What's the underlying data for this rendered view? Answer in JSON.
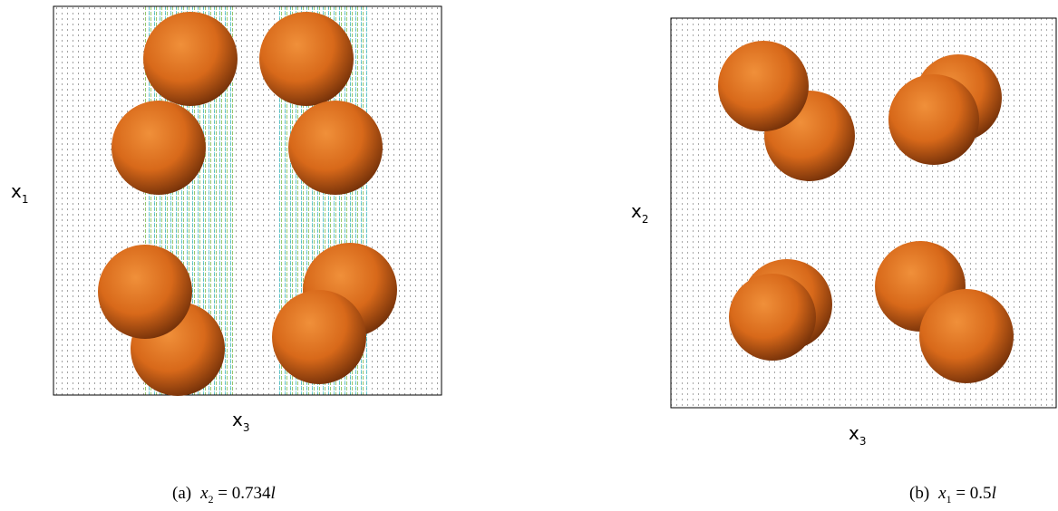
{
  "panels": [
    {
      "y_label": {
        "base": "x",
        "sub": "1"
      },
      "x_label": {
        "base": "x",
        "sub": "3"
      },
      "caption": {
        "tag": "(a)",
        "var": "x",
        "sub": "2",
        "rest": " = 0.734",
        "unit": "l"
      }
    },
    {
      "y_label": {
        "base": "x",
        "sub": "2"
      },
      "x_label": {
        "base": "x",
        "sub": "3"
      },
      "caption": {
        "tag": "(b)",
        "var": "x",
        "sub": "1",
        "rest": " = 0.5",
        "unit": "l"
      }
    }
  ]
}
